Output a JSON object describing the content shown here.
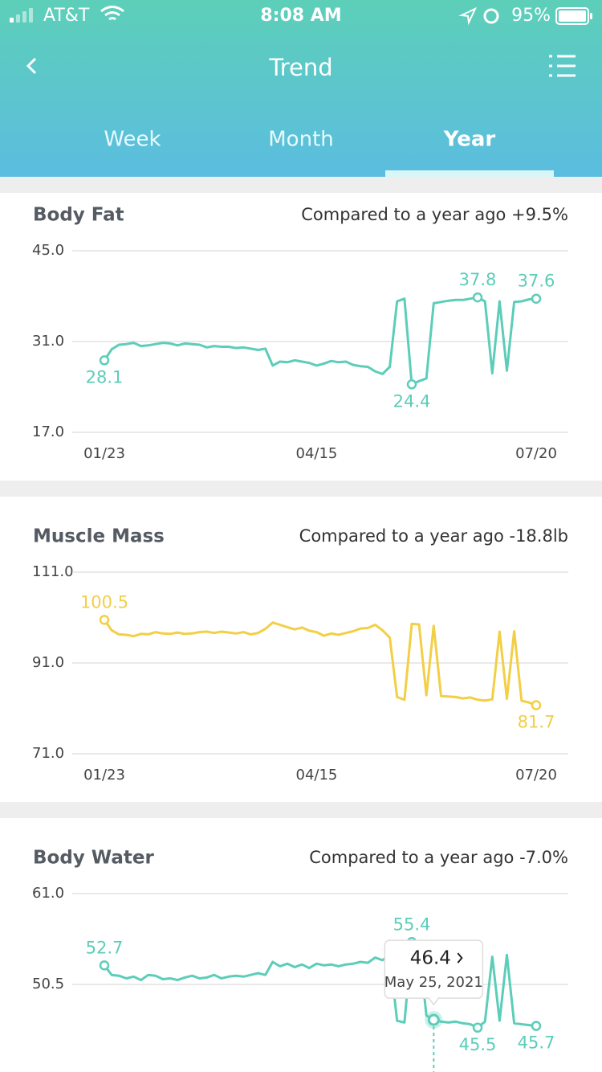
{
  "status_bar": {
    "carrier": "AT&T",
    "time": "8:08 AM",
    "battery": "95%"
  },
  "header": {
    "title": "Trend"
  },
  "tabs": [
    "Week",
    "Month",
    "Year"
  ],
  "chart_data": [
    {
      "type": "line",
      "title": "Body Fat",
      "subtitle": "Compared to a year ago +9.5%",
      "color": "#5ccdb9",
      "values": [
        28.1,
        29.8,
        30.5,
        30.6,
        30.8,
        30.3,
        30.4,
        30.6,
        30.8,
        30.7,
        30.4,
        30.7,
        30.6,
        30.5,
        30.1,
        30.3,
        30.2,
        30.2,
        30.0,
        30.1,
        29.9,
        29.7,
        29.9,
        27.3,
        27.9,
        27.8,
        28.1,
        27.9,
        27.7,
        27.3,
        27.6,
        28.0,
        27.8,
        27.9,
        27.4,
        27.2,
        27.1,
        26.4,
        26.0,
        27.1,
        37.2,
        37.6,
        24.4,
        24.9,
        25.3,
        36.9,
        37.1,
        37.3,
        37.4,
        37.4,
        37.6,
        37.8,
        37.2,
        26.1,
        37.2,
        26.5,
        37.1,
        37.2,
        37.5,
        37.6
      ],
      "value_labels": [
        "28.1",
        null,
        null,
        null,
        null,
        null,
        null,
        null,
        null,
        null,
        null,
        null,
        null,
        null,
        null,
        null,
        null,
        null,
        null,
        null,
        null,
        null,
        null,
        null,
        null,
        null,
        null,
        null,
        null,
        null,
        null,
        null,
        null,
        null,
        null,
        null,
        null,
        null,
        null,
        null,
        null,
        null,
        "24.4",
        null,
        null,
        null,
        null,
        null,
        null,
        null,
        null,
        "37.8",
        null,
        null,
        null,
        null,
        null,
        null,
        null,
        "37.6"
      ],
      "xlim": [
        0,
        59
      ],
      "xticks": [
        {
          "value": 0,
          "label": "01/23"
        },
        {
          "value": 29,
          "label": "04/15"
        },
        {
          "value": 59,
          "label": "07/20"
        }
      ],
      "ylim": [
        17,
        45
      ],
      "yticks": [
        {
          "value": 45,
          "label": "45.0"
        },
        {
          "value": 31,
          "label": "31.0"
        },
        {
          "value": 17,
          "label": "17.0"
        }
      ],
      "grid": true
    },
    {
      "type": "line",
      "title": "Muscle Mass",
      "subtitle": "Compared to a year ago -18.8lb",
      "color": "#f2cf45",
      "values": [
        100.5,
        98.2,
        97.3,
        97.2,
        96.9,
        97.4,
        97.3,
        97.8,
        97.5,
        97.4,
        97.7,
        97.4,
        97.5,
        97.8,
        97.9,
        97.6,
        97.9,
        97.7,
        97.5,
        97.8,
        97.3,
        97.6,
        98.5,
        99.9,
        99.4,
        98.9,
        98.4,
        98.8,
        98.1,
        97.8,
        97.0,
        97.5,
        97.2,
        97.6,
        98.0,
        98.6,
        98.7,
        99.4,
        98.2,
        96.6,
        83.5,
        82.9,
        99.6,
        99.5,
        83.9,
        99.2,
        83.7,
        83.6,
        83.5,
        83.2,
        83.4,
        82.9,
        82.7,
        83.0,
        97.9,
        83.1,
        98.0,
        82.7,
        82.3,
        81.7
      ],
      "value_labels": [
        "100.5",
        null,
        null,
        null,
        null,
        null,
        null,
        null,
        null,
        null,
        null,
        null,
        null,
        null,
        null,
        null,
        null,
        null,
        null,
        null,
        null,
        null,
        null,
        null,
        null,
        null,
        null,
        null,
        null,
        null,
        null,
        null,
        null,
        null,
        null,
        null,
        null,
        null,
        null,
        null,
        null,
        null,
        null,
        null,
        null,
        null,
        null,
        null,
        null,
        null,
        null,
        null,
        null,
        null,
        null,
        null,
        null,
        null,
        null,
        "81.7"
      ],
      "xlim": [
        0,
        59
      ],
      "xticks": [
        {
          "value": 0,
          "label": "01/23"
        },
        {
          "value": 29,
          "label": "04/15"
        },
        {
          "value": 59,
          "label": "07/20"
        }
      ],
      "ylim": [
        71,
        111
      ],
      "yticks": [
        {
          "value": 111,
          "label": "111.0"
        },
        {
          "value": 91,
          "label": "91.0"
        },
        {
          "value": 71,
          "label": "71.0"
        }
      ],
      "grid": true
    },
    {
      "type": "line",
      "title": "Body Water",
      "subtitle": "Compared to a year ago -7.0%",
      "color": "#5ccdb9",
      "values": [
        52.7,
        51.6,
        51.5,
        51.2,
        51.4,
        51.0,
        51.6,
        51.5,
        51.1,
        51.2,
        51.0,
        51.3,
        51.5,
        51.2,
        51.3,
        51.6,
        51.2,
        51.4,
        51.5,
        51.4,
        51.6,
        51.8,
        51.6,
        53.1,
        52.6,
        52.9,
        52.5,
        52.8,
        52.4,
        52.9,
        52.7,
        52.8,
        52.6,
        52.8,
        52.9,
        53.1,
        53.0,
        53.6,
        53.3,
        53.9,
        46.3,
        46.1,
        55.4,
        55.0,
        46.9,
        46.4,
        46.2,
        46.1,
        46.2,
        46.0,
        45.9,
        45.5,
        46.2,
        53.7,
        46.3,
        53.9,
        46.0,
        45.9,
        45.8,
        45.7
      ],
      "value_labels": [
        "52.7",
        null,
        null,
        null,
        null,
        null,
        null,
        null,
        null,
        null,
        null,
        null,
        null,
        null,
        null,
        null,
        null,
        null,
        null,
        null,
        null,
        null,
        null,
        null,
        null,
        null,
        null,
        null,
        null,
        null,
        null,
        null,
        null,
        null,
        null,
        null,
        null,
        null,
        null,
        null,
        null,
        null,
        "55.4",
        null,
        null,
        null,
        null,
        null,
        null,
        null,
        null,
        "45.5",
        null,
        null,
        null,
        null,
        null,
        null,
        null,
        "45.7"
      ],
      "xlim": [
        0,
        59
      ],
      "ylim": [
        40,
        61
      ],
      "yticks": [
        {
          "value": 61,
          "label": "61.0"
        },
        {
          "value": 50.5,
          "label": "50.5"
        }
      ],
      "grid": true,
      "selected": 45,
      "tooltip_date": "May 25, 2021"
    }
  ]
}
